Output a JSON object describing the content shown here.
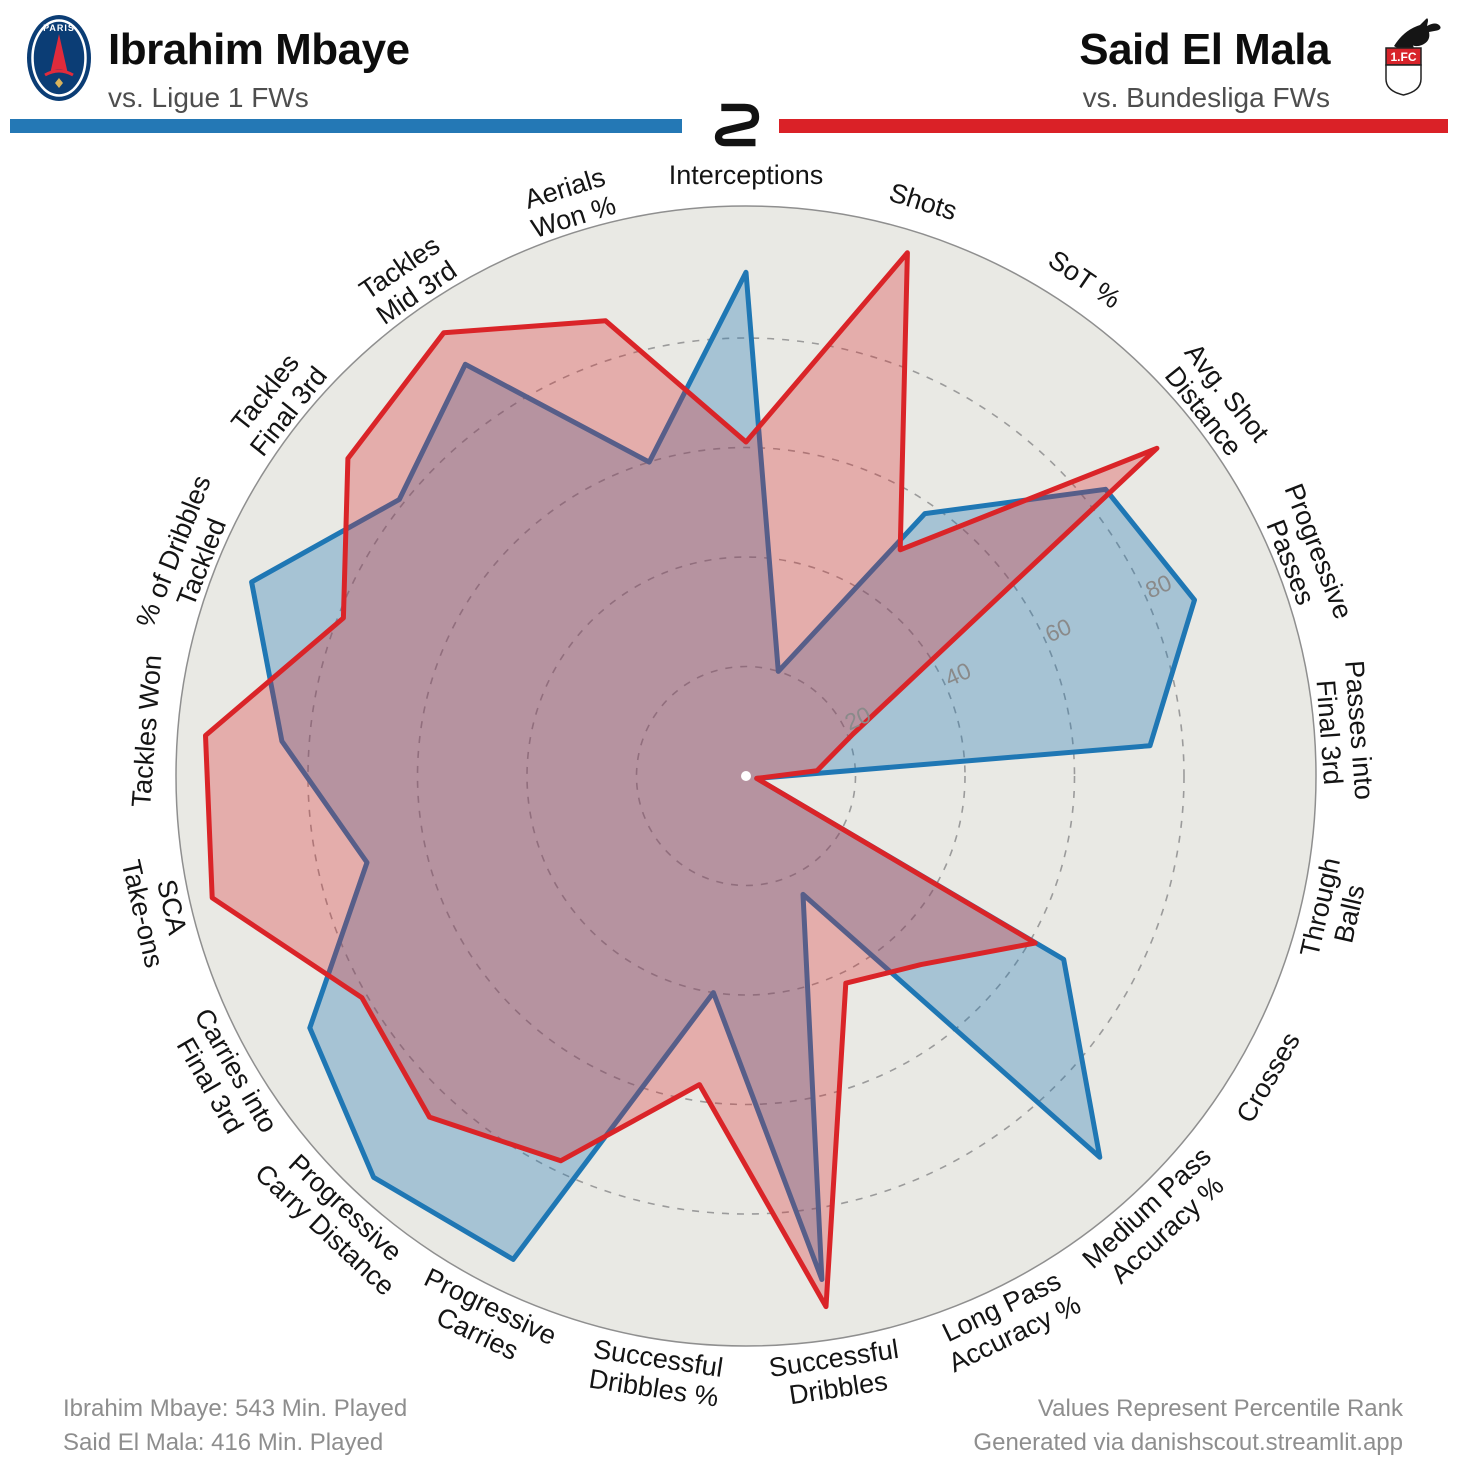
{
  "header": {
    "left_player": {
      "name": "Ibrahim Mbaye",
      "subtitle": "vs. Ligue 1 FWs",
      "bar_color": "#2478b5",
      "crest": "psg-crest",
      "crest_text": "PARIS"
    },
    "right_player": {
      "name": "Said El Mala",
      "subtitle": "vs. Bundesliga FWs",
      "bar_color": "#da2127",
      "crest": "fc-koln-crest",
      "crest_text": "1.FC"
    },
    "center_logo": "danishscout-monogram"
  },
  "footer": {
    "left_line1": "Ibrahim Mbaye: 543 Min. Played",
    "left_line2": "Said El Mala: 416 Min. Played",
    "right_line1": "Values Represent Percentile Rank",
    "right_line2": "Generated via danishscout.streamlit.app"
  },
  "chart_data": {
    "type": "radar",
    "title": "Percentile comparison radar",
    "categories": [
      "Interceptions",
      "Shots",
      "SoT %",
      "Avg. Shot\nDistance",
      "Progressive\nPasses",
      "Passes into\nFinal 3rd",
      "Through\nBalls",
      "Crosses",
      "Medium Pass\nAccuracy %",
      "Long Pass\nAccuracy %",
      "Successful\nDribbles",
      "Successful\nDribbles %",
      "Progressive\nCarries",
      "Progressive\nCarry Distance",
      "Carries into\nFinal 3rd",
      "SCA\nTake-ons",
      "Tackles Won",
      "% of Dribbles\nTackled",
      "Tackles\nFinal 3rd",
      "Tackles\nMid 3rd",
      "Aerials\nWon %"
    ],
    "series": [
      {
        "name": "Ibrahim Mbaye",
        "stroke": "#1f77b4",
        "fill": "rgba(31,119,180,0.33)",
        "values": [
          92,
          20,
          58,
          84,
          88,
          74,
          2,
          67,
          95,
          24,
          93,
          40,
          98,
          100,
          92,
          71,
          85,
          97,
          81,
          91,
          60
        ]
      },
      {
        "name": "Said El Mala",
        "stroke": "#da2428",
        "fill": "rgba(218,36,40,0.30)",
        "values": [
          61,
          100,
          50,
          96,
          21,
          13,
          2,
          61,
          47,
          42,
          98,
          57,
          78,
          85,
          81,
          100,
          99,
          79,
          93,
          98,
          87
        ]
      }
    ],
    "radial_ticks": [
      20,
      40,
      60,
      80
    ],
    "rlim": [
      0,
      100
    ],
    "grid": "dashed concentric circles",
    "legend_position": "none",
    "note": "Values Represent Percentile Rank"
  }
}
